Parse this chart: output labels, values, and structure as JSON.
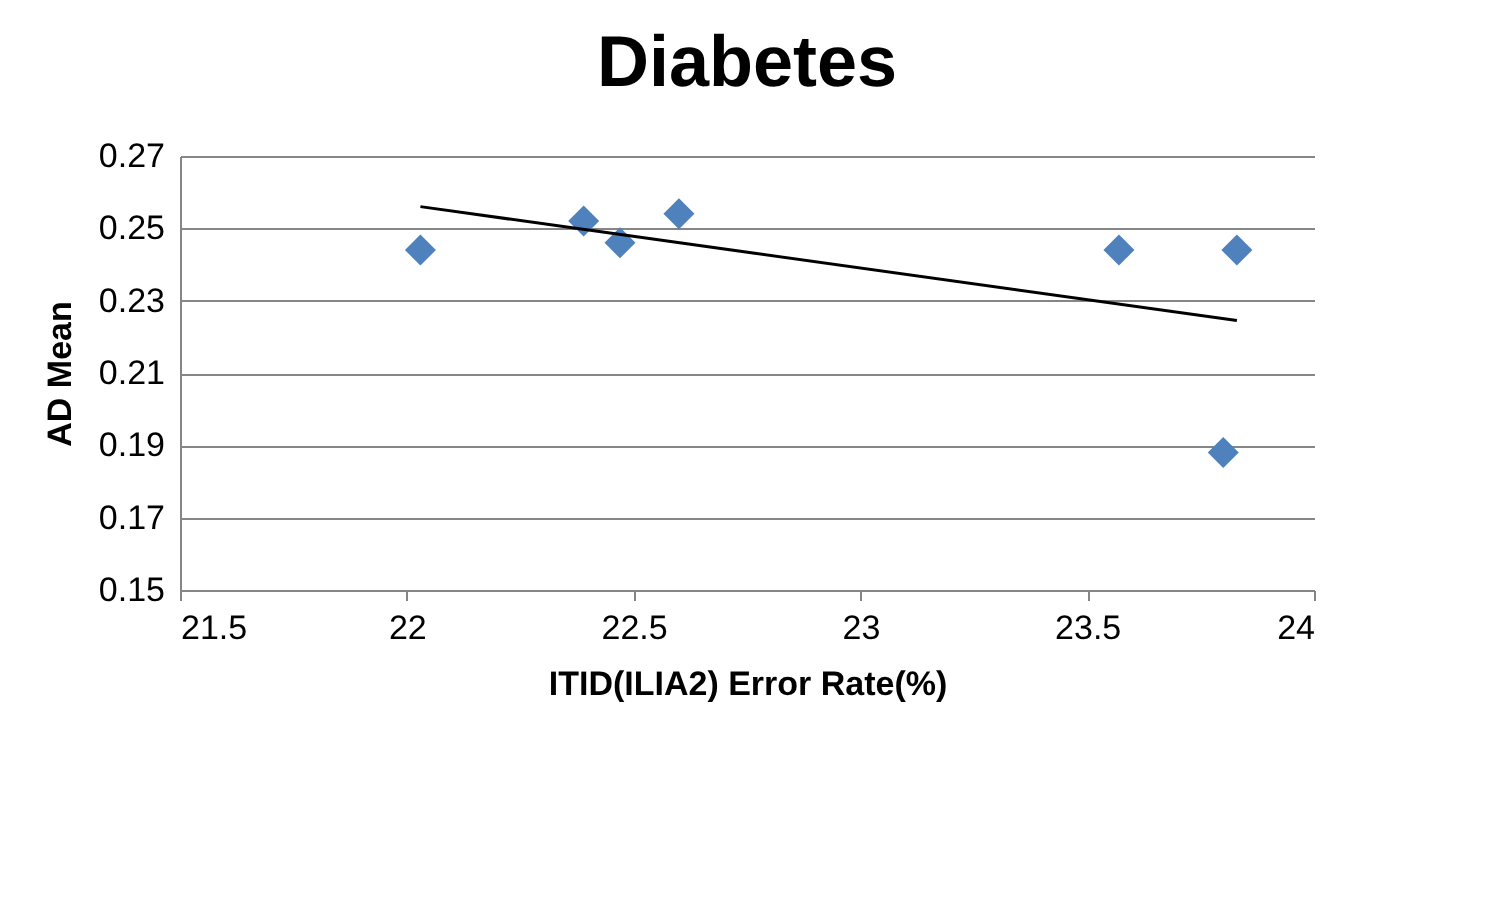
{
  "chart_data": {
    "type": "scatter",
    "title": "Diabetes",
    "xlabel": "ITID(ILIA2) Error Rate(%)",
    "ylabel": "AD Mean",
    "series": [
      {
        "color": "#4f81bd",
        "marker": "diamond",
        "x": [
          22.03,
          22.39,
          22.47,
          22.6,
          23.57,
          23.83,
          23.8
        ],
        "values": [
          0.244,
          0.252,
          0.246,
          0.254,
          0.244,
          0.244,
          0.188
        ]
      },
      {
        "type": "line",
        "color": "#000000",
        "x": [
          22.03,
          23.83
        ],
        "values": [
          0.256,
          0.2245
        ]
      }
    ],
    "xlim": [
      21.5,
      24
    ],
    "xticks": [
      21.5,
      22,
      22.5,
      23,
      23.5,
      24
    ],
    "ylim": [
      0.15,
      0.27
    ],
    "yticks": [
      0.15,
      0.17,
      0.19,
      0.21,
      0.23,
      0.25,
      0.27
    ],
    "grid": "y"
  }
}
